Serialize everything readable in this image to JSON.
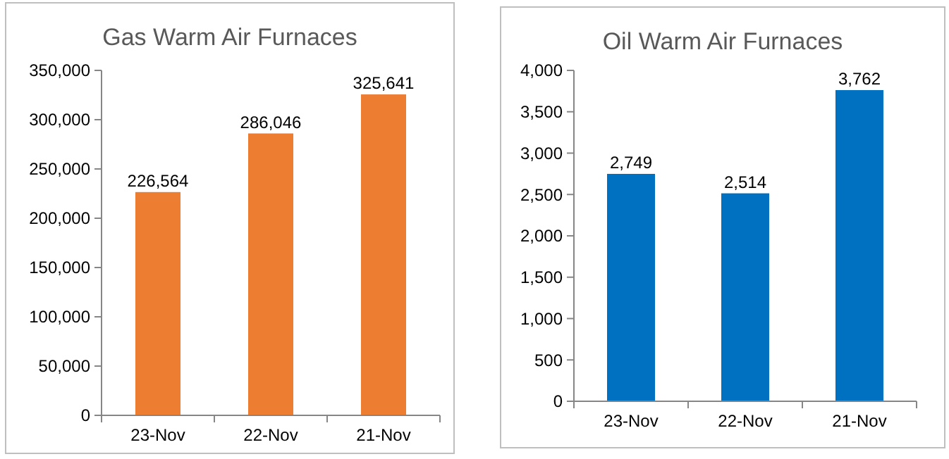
{
  "chart_data": [
    {
      "type": "bar",
      "title": "Gas Warm Air Furnaces",
      "categories": [
        "23-Nov",
        "22-Nov",
        "21-Nov"
      ],
      "values": [
        226564,
        286046,
        325641
      ],
      "color": "#ed7d31",
      "ylim": [
        0,
        350000
      ],
      "yticks": [
        {
          "value": 0,
          "label": "0"
        },
        {
          "value": 50000,
          "label": "50,000"
        },
        {
          "value": 100000,
          "label": "100,000"
        },
        {
          "value": 150000,
          "label": "150,000"
        },
        {
          "value": 200000,
          "label": "200,000"
        },
        {
          "value": 250000,
          "label": "250,000"
        },
        {
          "value": 300000,
          "label": "300,000"
        },
        {
          "value": 350000,
          "label": "350,000"
        }
      ],
      "data_labels": true,
      "value_labels": [
        "226,564",
        "286,046",
        "325,641"
      ]
    },
    {
      "type": "bar",
      "title": "Oil Warm Air Furnaces",
      "categories": [
        "23-Nov",
        "22-Nov",
        "21-Nov"
      ],
      "values": [
        2749,
        2514,
        3762
      ],
      "color": "#0070c0",
      "ylim": [
        0,
        4000
      ],
      "yticks": [
        0,
        500,
        {
          "value": 1000,
          "label": "1,000"
        },
        {
          "value": 1500,
          "label": "1,500"
        },
        {
          "value": 2000,
          "label": "2,000"
        },
        {
          "value": 2500,
          "label": "2,500"
        },
        {
          "value": 3000,
          "label": "3,000"
        },
        {
          "value": 3500,
          "label": "3,500"
        },
        {
          "value": 4000,
          "label": "4,000"
        }
      ],
      "data_labels": true,
      "value_labels": [
        "2,749",
        "2,514",
        "3,762"
      ]
    }
  ]
}
